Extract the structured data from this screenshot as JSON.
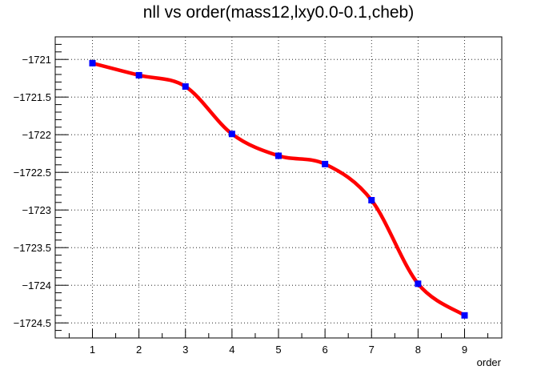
{
  "chart_data": {
    "type": "line",
    "title": "nll vs order(mass12,lxy0.0-0.1,cheb)",
    "xlabel": "order",
    "ylabel": "",
    "x": [
      1,
      2,
      3,
      4,
      5,
      6,
      7,
      8,
      9
    ],
    "series": [
      {
        "values": [
          -1721.05,
          -1721.21,
          -1721.36,
          -1721.99,
          -1722.28,
          -1722.39,
          -1722.87,
          -1723.98,
          -1724.4
        ],
        "line_color": "#ff0000",
        "marker_color": "#0000ff"
      }
    ],
    "xlim": [
      0.2,
      9.8
    ],
    "ylim": [
      -1724.7,
      -1720.7
    ],
    "x_ticks": [
      "1",
      "2",
      "3",
      "4",
      "5",
      "6",
      "7",
      "8",
      "9"
    ],
    "y_ticks": [
      "−1721",
      "−1721.5",
      "−1722",
      "−1722.5",
      "−1723",
      "−1723.5",
      "−1724",
      "−1724.5"
    ],
    "y_tick_values": [
      -1721,
      -1721.5,
      -1722,
      -1722.5,
      -1723,
      -1723.5,
      -1724,
      -1724.5
    ],
    "grid": true,
    "legend": "none"
  }
}
